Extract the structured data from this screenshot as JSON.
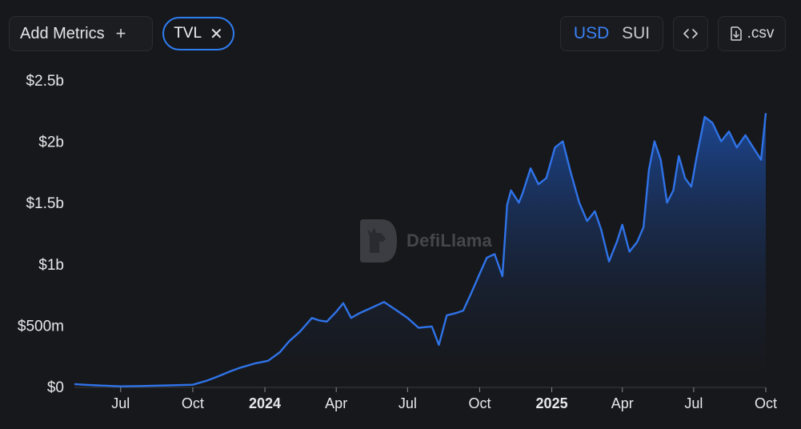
{
  "toolbar": {
    "add_metrics_label": "Add Metrics",
    "add_metrics_icon": "+",
    "metric_pill_label": "TVL",
    "metric_pill_close": "✕",
    "currency_options": [
      "USD",
      "SUI"
    ],
    "currency_selected": "USD",
    "embed_icon": "code-icon",
    "csv_label": ".csv",
    "csv_icon": "download-icon"
  },
  "watermark": {
    "text": "DefiLlama"
  },
  "colors": {
    "line": "#2f73e8",
    "fill_top": "#1d4fa8",
    "accent": "#3b82f6",
    "background": "#17181b"
  },
  "chart_data": {
    "type": "area",
    "title": "",
    "xlabel": "",
    "ylabel": "",
    "y_unit": "USD",
    "ylim": [
      0,
      2500000000
    ],
    "y_ticks": [
      {
        "value": 0,
        "label": "$0"
      },
      {
        "value": 500000000,
        "label": "$500m"
      },
      {
        "value": 1000000000,
        "label": "$1b"
      },
      {
        "value": 1500000000,
        "label": "$1.5b"
      },
      {
        "value": 2000000000,
        "label": "$2b"
      },
      {
        "value": 2500000000,
        "label": "$2.5b"
      }
    ],
    "xlim": [
      "2023-05-03",
      "2025-10-01"
    ],
    "x_ticks": [
      {
        "date": "2023-07-01",
        "label": "Jul",
        "bold": false
      },
      {
        "date": "2023-10-01",
        "label": "Oct",
        "bold": false
      },
      {
        "date": "2024-01-01",
        "label": "2024",
        "bold": true
      },
      {
        "date": "2024-04-01",
        "label": "Apr",
        "bold": false
      },
      {
        "date": "2024-07-01",
        "label": "Jul",
        "bold": false
      },
      {
        "date": "2024-10-01",
        "label": "Oct",
        "bold": false
      },
      {
        "date": "2025-01-01",
        "label": "2025",
        "bold": true
      },
      {
        "date": "2025-04-01",
        "label": "Apr",
        "bold": false
      },
      {
        "date": "2025-07-01",
        "label": "Jul",
        "bold": false
      },
      {
        "date": "2025-10-01",
        "label": "Oct",
        "bold": false
      }
    ],
    "grid": false,
    "legend": "none",
    "series": [
      {
        "x": [
          "2023-05-03",
          "2023-05-15",
          "2023-06-01",
          "2023-07-01",
          "2023-08-01",
          "2023-09-01",
          "2023-10-01",
          "2023-10-20",
          "2023-11-01",
          "2023-11-20",
          "2023-12-01",
          "2023-12-20",
          "2024-01-05",
          "2024-01-20",
          "2024-02-01",
          "2024-02-15",
          "2024-03-01",
          "2024-03-10",
          "2024-03-20",
          "2024-04-01",
          "2024-04-10",
          "2024-04-20",
          "2024-05-01",
          "2024-05-15",
          "2024-06-01",
          "2024-06-15",
          "2024-07-01",
          "2024-07-15",
          "2024-08-01",
          "2024-08-10",
          "2024-08-20",
          "2024-09-01",
          "2024-09-10",
          "2024-09-20",
          "2024-10-01",
          "2024-10-10",
          "2024-10-20",
          "2024-10-30",
          "2024-11-05",
          "2024-11-10",
          "2024-11-20",
          "2024-11-25",
          "2024-12-05",
          "2024-12-15",
          "2024-12-25",
          "2025-01-05",
          "2025-01-15",
          "2025-01-25",
          "2025-02-05",
          "2025-02-15",
          "2025-02-25",
          "2025-03-05",
          "2025-03-15",
          "2025-03-25",
          "2025-04-01",
          "2025-04-10",
          "2025-04-20",
          "2025-04-28",
          "2025-05-05",
          "2025-05-12",
          "2025-05-20",
          "2025-05-28",
          "2025-06-05",
          "2025-06-12",
          "2025-06-20",
          "2025-06-28",
          "2025-07-05",
          "2025-07-15",
          "2025-07-25",
          "2025-08-05",
          "2025-08-15",
          "2025-08-25",
          "2025-09-05",
          "2025-09-15",
          "2025-09-25",
          "2025-10-01"
        ],
        "values": [
          20000000,
          15000000,
          10000000,
          2000000,
          5000000,
          10000000,
          15000000,
          50000000,
          80000000,
          130000000,
          155000000,
          190000000,
          210000000,
          280000000,
          370000000,
          450000000,
          560000000,
          540000000,
          530000000,
          610000000,
          680000000,
          560000000,
          600000000,
          640000000,
          690000000,
          630000000,
          560000000,
          480000000,
          490000000,
          340000000,
          580000000,
          600000000,
          620000000,
          760000000,
          920000000,
          1050000000,
          1080000000,
          900000000,
          1480000000,
          1600000000,
          1500000000,
          1580000000,
          1780000000,
          1650000000,
          1700000000,
          1950000000,
          2000000000,
          1750000000,
          1500000000,
          1350000000,
          1430000000,
          1280000000,
          1020000000,
          1180000000,
          1320000000,
          1100000000,
          1180000000,
          1300000000,
          1770000000,
          2000000000,
          1850000000,
          1500000000,
          1600000000,
          1880000000,
          1700000000,
          1630000000,
          1880000000,
          2200000000,
          2150000000,
          2000000000,
          2080000000,
          1950000000,
          2050000000,
          1950000000,
          1850000000,
          2230000000
        ]
      }
    ]
  }
}
